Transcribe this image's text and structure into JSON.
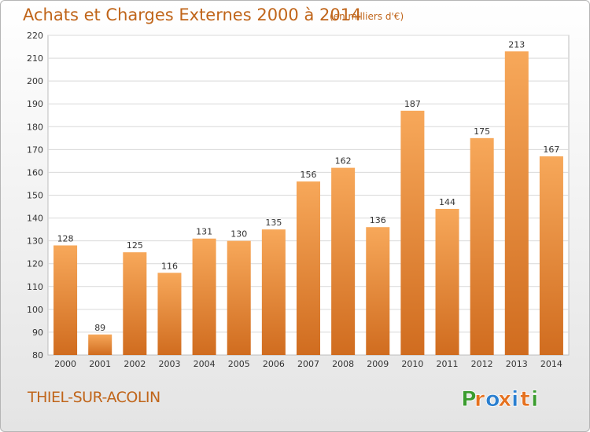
{
  "header": {
    "title": "Achats et Charges Externes 2000 à 2014",
    "unit_note": "(en milliers d'€)"
  },
  "footer": {
    "commune": "THIEL-SUR-ACOLIN",
    "logo_letters": [
      "P",
      "r",
      "o",
      "x",
      "i",
      "t",
      "i"
    ]
  },
  "colors": {
    "accent": "#c0651a",
    "bar_light": "#f7a85a",
    "bar_dark": "#d06c1f",
    "logo": [
      "#3a9c2e",
      "#e5711f",
      "#2a7fd0",
      "#e5711f",
      "#2a7fd0",
      "#e5711f",
      "#3a9c2e"
    ]
  },
  "chart_data": {
    "type": "bar",
    "title": "Achats et Charges Externes 2000 à 2014",
    "subtitle": "(en milliers d'€)",
    "categories": [
      "2000",
      "2001",
      "2002",
      "2003",
      "2004",
      "2005",
      "2006",
      "2007",
      "2008",
      "2009",
      "2010",
      "2011",
      "2012",
      "2013",
      "2014"
    ],
    "values": [
      128,
      89,
      125,
      116,
      131,
      130,
      135,
      156,
      162,
      136,
      187,
      144,
      175,
      213,
      167
    ],
    "ylim": [
      80,
      220
    ],
    "yticks": [
      80,
      90,
      100,
      110,
      120,
      130,
      140,
      150,
      160,
      170,
      180,
      190,
      200,
      210,
      220
    ],
    "grid": true,
    "data_labels": true,
    "xlabel": "",
    "ylabel": ""
  }
}
